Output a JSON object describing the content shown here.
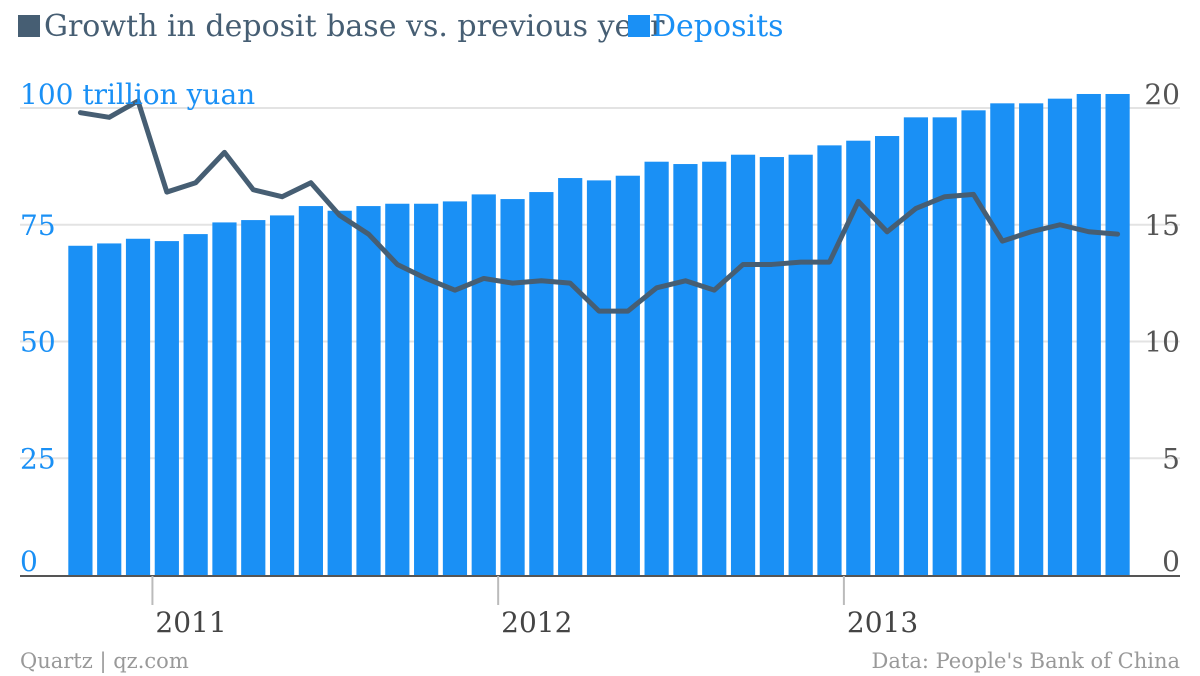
{
  "chart_data": {
    "type": "bar+line",
    "legend": [
      {
        "label": "Growth in deposit base vs. previous year",
        "color": "#465e73"
      },
      {
        "label": "Deposits",
        "color": "#1a90f5"
      }
    ],
    "left_axis": {
      "unit_label": "100 trillion yuan",
      "ticks": [
        "0",
        "25",
        "50",
        "75"
      ],
      "range": [
        0,
        100
      ],
      "color": "#1a90f5"
    },
    "right_axis": {
      "ticks": [
        "0",
        "5",
        "10",
        "15",
        "20"
      ],
      "range": [
        0,
        20
      ],
      "color": "#555555"
    },
    "x_axis": {
      "tick_labels": [
        "2011",
        "2012",
        "2013"
      ]
    },
    "series": [
      {
        "name": "Deposits",
        "type": "bar",
        "axis": "left",
        "values": [
          70.5,
          71,
          72,
          71.5,
          73,
          75.5,
          76,
          77,
          79,
          78,
          79,
          79.5,
          79.5,
          80,
          81.5,
          80.5,
          82,
          85,
          84.5,
          85.5,
          88.5,
          88,
          88.5,
          90,
          89.5,
          90,
          92,
          93,
          94,
          98,
          98,
          99.5,
          101,
          101,
          102,
          103,
          103
        ]
      },
      {
        "name": "Growth in deposit base vs. previous year",
        "type": "line",
        "axis": "right",
        "values": [
          19.8,
          19.6,
          20.3,
          16.4,
          16.8,
          18.1,
          16.5,
          16.2,
          16.8,
          15.4,
          14.6,
          13.3,
          12.7,
          12.2,
          12.7,
          12.5,
          12.6,
          12.5,
          11.3,
          11.3,
          12.3,
          12.6,
          12.2,
          13.3,
          13.3,
          13.4,
          13.4,
          16.0,
          14.7,
          15.7,
          16.2,
          16.3,
          14.3,
          14.7,
          15.0,
          14.7,
          14.6
        ]
      }
    ],
    "grid": true
  },
  "footer": {
    "source_left": "Quartz | qz.com",
    "source_right": "Data: People's Bank of China"
  }
}
